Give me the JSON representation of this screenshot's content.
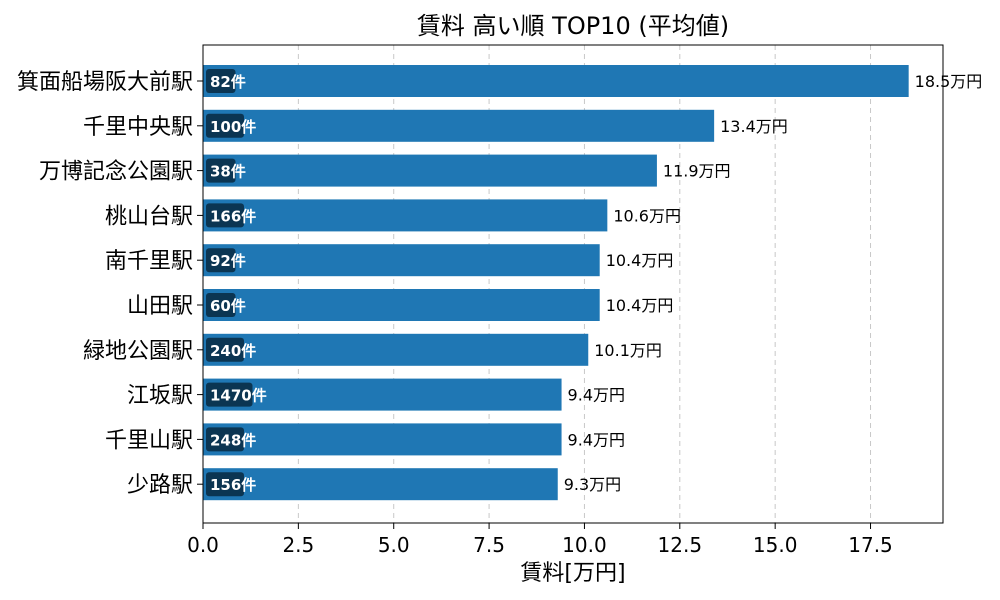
{
  "chart_data": {
    "type": "bar",
    "orientation": "horizontal",
    "title": "賃料 高い順 TOP10 (平均値)",
    "xlabel": "賃料[万円]",
    "ylabel": "",
    "xlim": [
      0,
      19.4
    ],
    "xticks": [
      "0.0",
      "2.5",
      "5.0",
      "7.5",
      "10.0",
      "12.5",
      "15.0",
      "17.5"
    ],
    "grid": "x-dashed",
    "bar_color": "#1f77b4",
    "badge_color": "#0b3552",
    "value_unit": "万円",
    "categories": [
      "箕面船場阪大前駅",
      "千里中央駅",
      "万博記念公園駅",
      "桃山台駅",
      "南千里駅",
      "山田駅",
      "緑地公園駅",
      "江坂駅",
      "千里山駅",
      "少路駅"
    ],
    "values": [
      18.5,
      13.4,
      11.9,
      10.6,
      10.4,
      10.4,
      10.1,
      9.4,
      9.4,
      9.3
    ],
    "value_labels": [
      "18.5万円",
      "13.4万円",
      "11.9万円",
      "10.6万円",
      "10.4万円",
      "10.4万円",
      "10.1万円",
      "9.4万円",
      "9.4万円",
      "9.3万円"
    ],
    "counts": [
      "82件",
      "100件",
      "38件",
      "166件",
      "92件",
      "60件",
      "240件",
      "1470件",
      "248件",
      "156件"
    ]
  }
}
